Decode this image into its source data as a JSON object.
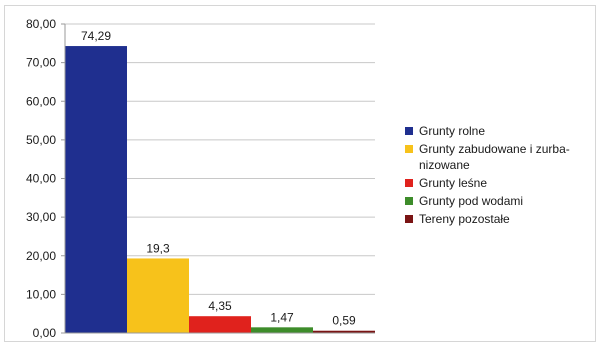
{
  "chart_data": {
    "type": "bar",
    "title": "",
    "xlabel": "",
    "ylabel": "",
    "ylim": [
      0,
      80
    ],
    "y_ticks": [
      "0,00",
      "10,00",
      "20,00",
      "30,00",
      "40,00",
      "50,00",
      "60,00",
      "70,00",
      "80,00"
    ],
    "grid": true,
    "legend_position": "right",
    "series": [
      {
        "name": "Grunty rolne",
        "value": 74.29,
        "value_label": "74,29",
        "color": "#1f2f8f"
      },
      {
        "name": "Grunty zabudowane i zurba-nizowane",
        "value": 19.3,
        "value_label": "19,3",
        "color": "#f7c21b"
      },
      {
        "name": "Grunty leśne",
        "value": 4.35,
        "value_label": "4,35",
        "color": "#e0221d"
      },
      {
        "name": "Grunty pod wodami",
        "value": 1.47,
        "value_label": "1,47",
        "color": "#3d8c2a"
      },
      {
        "name": "Tereny pozostałe",
        "value": 0.59,
        "value_label": "0,59",
        "color": "#7a1414"
      }
    ],
    "legend_lines": [
      [
        "Grunty rolne"
      ],
      [
        "Grunty zabudowane i zurba-",
        "nizowane"
      ],
      [
        "Grunty leśne"
      ],
      [
        "Grunty pod wodami"
      ],
      [
        "Tereny pozostałe"
      ]
    ]
  }
}
